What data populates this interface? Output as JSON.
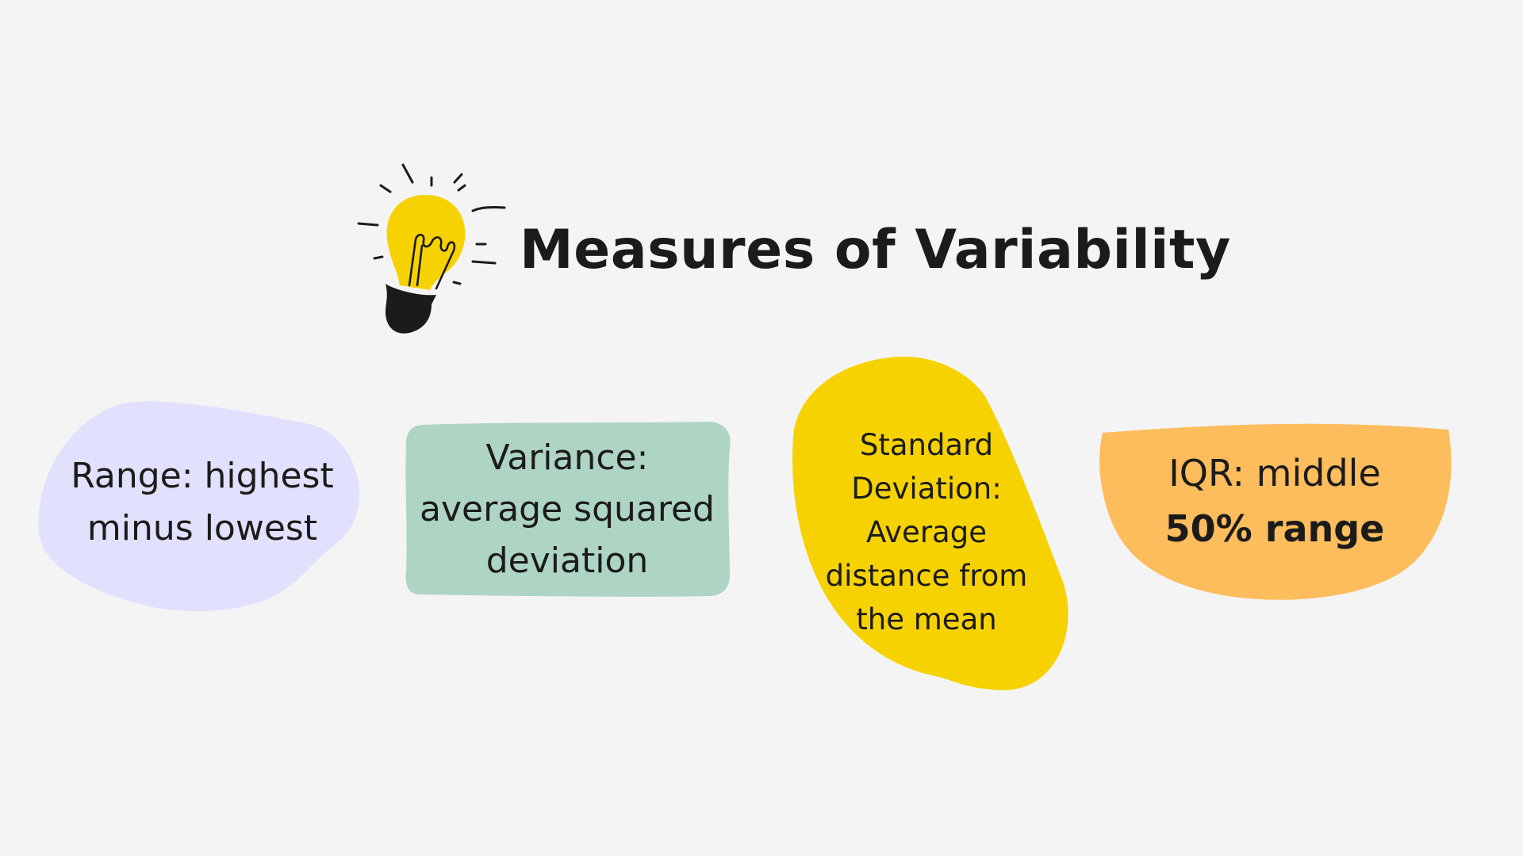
{
  "title": "Measures of Variability",
  "cards": [
    {
      "name": "range",
      "lines": [
        "Range: highest",
        "minus lowest"
      ],
      "color": "#e1e0fd"
    },
    {
      "name": "variance",
      "lines": [
        "Variance:",
        "average squared",
        "deviation"
      ],
      "color": "#aed4c4"
    },
    {
      "name": "standard-deviation",
      "lines": [
        "Standard",
        "Deviation:",
        "Average",
        "distance from",
        "the mean"
      ],
      "color": "#f7d203"
    },
    {
      "name": "iqr",
      "lines": [
        "IQR: middle",
        "50% range"
      ],
      "color": "#fdbd5c"
    }
  ],
  "icon": "lightbulb-icon",
  "colors": {
    "background": "#f4f4f4",
    "text": "#1b1b1b",
    "bulb": "#f7d203"
  }
}
